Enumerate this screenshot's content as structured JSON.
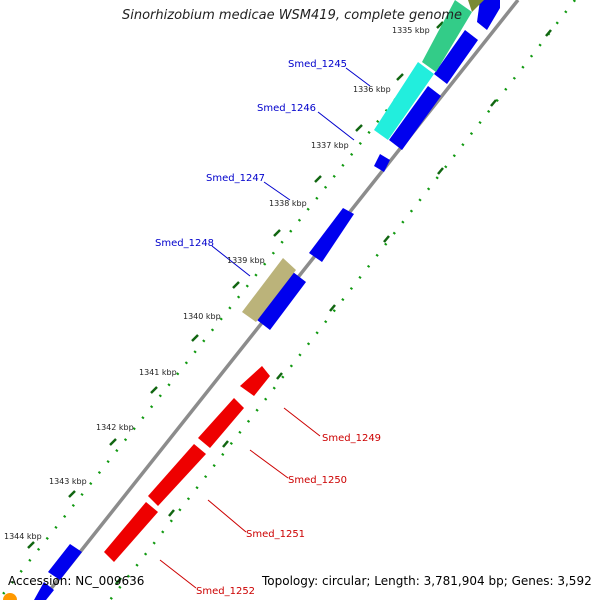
{
  "title": "Sinorhizobium medicae WSM419, complete genome",
  "footer": {
    "accession_label": "Accession:",
    "accession": "NC_009636",
    "topology_label": "Topology:",
    "topology": "circular",
    "length_label": "Length:",
    "length": "3,781,904 bp",
    "genes_label": "Genes:",
    "genes": "3,592"
  },
  "kbp_ticks": [
    "1335 kbp",
    "1336 kbp",
    "1337 kbp",
    "1338 kbp",
    "1339 kbp",
    "1340 kbp",
    "1341 kbp",
    "1342 kbp",
    "1343 kbp",
    "1344 kbp"
  ],
  "gene_labels": [
    {
      "name": "Smed_1245",
      "color": "#0000cc"
    },
    {
      "name": "Smed_1246",
      "color": "#0000cc"
    },
    {
      "name": "Smed_1247",
      "color": "#0000cc"
    },
    {
      "name": "Smed_1248",
      "color": "#0000cc"
    },
    {
      "name": "Smed_1249",
      "color": "#cc0000"
    },
    {
      "name": "Smed_1250",
      "color": "#cc0000"
    },
    {
      "name": "Smed_1251",
      "color": "#cc0000"
    },
    {
      "name": "Smed_1252",
      "color": "#cc0000"
    }
  ],
  "colors": {
    "backbone": "#888888",
    "forward_gene": "#0000ee",
    "reverse_gene": "#ee0000",
    "cyan_gene": "#22eedd",
    "green_gene": "#33cc88",
    "olive_gene": "#bbb37a",
    "tick": "#116611",
    "dots": "#119911"
  }
}
